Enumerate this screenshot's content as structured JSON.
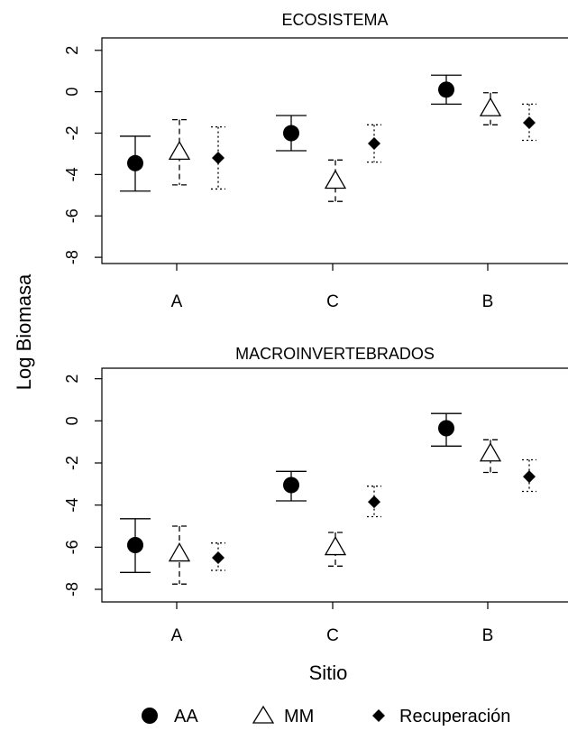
{
  "figure": {
    "ylabel": "Log Biomasa",
    "xlabel": "Sitio",
    "legend": [
      {
        "label": "AA",
        "marker": "circle"
      },
      {
        "label": "MM",
        "marker": "triangle"
      },
      {
        "label": "Recuperación",
        "marker": "diamond"
      }
    ]
  },
  "chart_data": [
    {
      "type": "scatter",
      "title": "ECOSISTEMA",
      "categories": [
        "A",
        "C",
        "B"
      ],
      "ylim": [
        -8.3,
        2.6
      ],
      "yticks": [
        2,
        0,
        -2,
        -4,
        -6,
        -8
      ],
      "grid": false,
      "series": [
        {
          "name": "AA",
          "marker": "circle",
          "line": "solid",
          "y": [
            -3.45,
            -2.0,
            0.1
          ],
          "lower": [
            -4.8,
            -2.85,
            -0.6
          ],
          "upper": [
            -2.15,
            -1.15,
            0.8
          ]
        },
        {
          "name": "MM",
          "marker": "triangle",
          "line": "dashed",
          "y": [
            -2.9,
            -4.3,
            -0.8
          ],
          "lower": [
            -4.5,
            -5.3,
            -1.6
          ],
          "upper": [
            -1.35,
            -3.3,
            -0.05
          ]
        },
        {
          "name": "Recuperación",
          "marker": "diamond",
          "line": "dotted",
          "y": [
            -3.2,
            -2.5,
            -1.5
          ],
          "lower": [
            -4.7,
            -3.4,
            -2.35
          ],
          "upper": [
            -1.7,
            -1.6,
            -0.6
          ]
        }
      ]
    },
    {
      "type": "scatter",
      "title": "MACROINVERTEBRADOS",
      "categories": [
        "A",
        "C",
        "B"
      ],
      "ylim": [
        -8.6,
        2.5
      ],
      "yticks": [
        2,
        0,
        -2,
        -4,
        -6,
        -8
      ],
      "grid": false,
      "series": [
        {
          "name": "AA",
          "marker": "circle",
          "line": "solid",
          "y": [
            -5.9,
            -3.05,
            -0.35
          ],
          "lower": [
            -7.2,
            -3.8,
            -1.2
          ],
          "upper": [
            -4.65,
            -2.4,
            0.35
          ]
        },
        {
          "name": "MM",
          "marker": "triangle",
          "line": "dashed",
          "y": [
            -6.3,
            -6.0,
            -1.55
          ],
          "lower": [
            -7.75,
            -6.9,
            -2.45
          ],
          "upper": [
            -5.0,
            -5.3,
            -0.9
          ]
        },
        {
          "name": "Recuperación",
          "marker": "diamond",
          "line": "dotted",
          "y": [
            -6.5,
            -3.85,
            -2.65
          ],
          "lower": [
            -7.1,
            -4.55,
            -3.35
          ],
          "upper": [
            -5.8,
            -3.1,
            -1.85
          ]
        }
      ]
    }
  ]
}
